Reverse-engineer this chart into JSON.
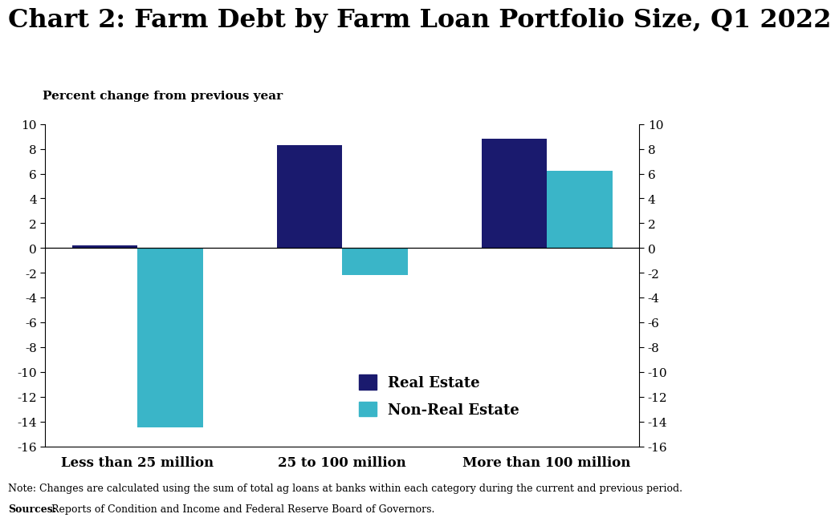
{
  "title": "Chart 2: Farm Debt by Farm Loan Portfolio Size, Q1 2022",
  "ylabel": "Percent change from previous year",
  "categories": [
    "Less than 25 million",
    "25 to 100 million",
    "More than 100 million"
  ],
  "real_estate": [
    0.2,
    8.3,
    8.8
  ],
  "non_real_estate": [
    -14.5,
    -2.2,
    6.2
  ],
  "real_estate_color": "#1a1a6e",
  "non_real_estate_color": "#3ab5c8",
  "ylim": [
    -16,
    10
  ],
  "yticks": [
    -16,
    -14,
    -12,
    -10,
    -8,
    -6,
    -4,
    -2,
    0,
    2,
    4,
    6,
    8,
    10
  ],
  "bar_width": 0.32,
  "legend_labels": [
    "Real Estate",
    "Non-Real Estate"
  ],
  "note_text": "Note: Changes are calculated using the sum of total ag loans at banks within each category during the current and previous period.",
  "source_label": "Sources:",
  "source_rest": " Reports of Condition and Income and Federal Reserve Board of Governors.",
  "background_color": "#ffffff",
  "title_fontsize": 23,
  "ylabel_fontsize": 11,
  "tick_fontsize": 11,
  "xtick_fontsize": 12,
  "legend_fontsize": 13,
  "note_fontsize": 9
}
